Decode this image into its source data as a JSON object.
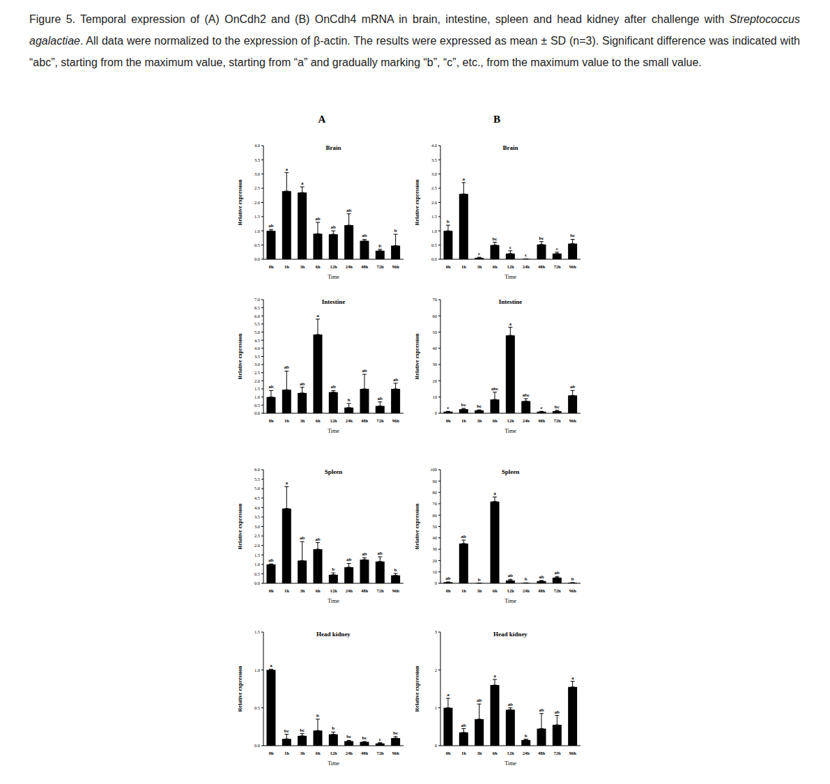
{
  "caption": {
    "label": "Figure 5",
    "parts": [
      {
        "text": ". Temporal expression of (A) OnCdh2 and (B) OnCdh4 mRNA in brain, intestine, spleen and head kidney after challenge with ",
        "italic": false
      },
      {
        "text": "Streptococcus agalactiae",
        "italic": true
      },
      {
        "text": ". All data were normalized to the expression of β-actin. The results were expressed as mean ± SD (n=3). Significant difference was indicated with “abc”, starting from the maximum value, starting from “a” and gradually marking “b”, “c”, etc., from the maximum value to the small value.",
        "italic": false
      }
    ]
  },
  "panel_labels": [
    "A",
    "B"
  ],
  "chart_data": [
    {
      "type": "bar",
      "panel": "A",
      "title": "Brain",
      "x_label": "Time",
      "y_label": "Relative expression",
      "color": "#000000",
      "categories": [
        "0h",
        "1h",
        "3h",
        "6h",
        "12h",
        "24h",
        "48h",
        "72h",
        "96h"
      ],
      "values": [
        1.0,
        2.4,
        2.35,
        0.9,
        0.88,
        1.2,
        0.65,
        0.3,
        0.48
      ],
      "errors": [
        0.05,
        0.65,
        0.2,
        0.4,
        0.12,
        0.4,
        0.05,
        0.05,
        0.4
      ],
      "letters": [
        "ab",
        "a",
        "a",
        "ab",
        "ab",
        "ab",
        "ab",
        "b",
        "b"
      ],
      "ylim": [
        0,
        4
      ],
      "yticks": [
        {
          "value": 0,
          "label": "0.0"
        },
        0.5,
        {
          "value": 1,
          "label": "1.0"
        },
        1.5,
        {
          "value": 2,
          "label": "2.0"
        },
        2.5,
        {
          "value": 3,
          "label": "3.0"
        },
        3.5,
        {
          "value": 4,
          "label": "4.0"
        }
      ]
    },
    {
      "type": "bar",
      "panel": "A",
      "title": "Intestine",
      "x_label": "Time",
      "y_label": "Relative expression",
      "color": "#000000",
      "categories": [
        "0h",
        "1h",
        "3h",
        "6h",
        "12h",
        "24h",
        "48h",
        "72h",
        "96h"
      ],
      "values": [
        1.0,
        1.45,
        1.25,
        4.85,
        1.3,
        0.35,
        1.5,
        0.45,
        1.5
      ],
      "errors": [
        0.4,
        1.15,
        0.35,
        0.95,
        0.1,
        0.25,
        0.9,
        0.25,
        0.35
      ],
      "letters": [
        "ab",
        "ab",
        "ab",
        "a",
        "ab",
        "b",
        "ab",
        "ab",
        "ab"
      ],
      "ylim": [
        0,
        7
      ],
      "yticks": [
        {
          "value": 0,
          "label": "0.0"
        },
        0.5,
        {
          "value": 1,
          "label": "1.0"
        },
        1.5,
        {
          "value": 2,
          "label": "2.0"
        },
        2.5,
        {
          "value": 3,
          "label": "3.0"
        },
        3.5,
        {
          "value": 4,
          "label": "4.0"
        },
        4.5,
        {
          "value": 5,
          "label": "5.0"
        },
        5.5,
        {
          "value": 6,
          "label": "6.0"
        },
        6.5,
        {
          "value": 7,
          "label": "7.0"
        }
      ]
    },
    {
      "type": "bar",
      "panel": "A",
      "title": "Spleen",
      "x_label": "Time",
      "y_label": "Relative expression",
      "color": "#000000",
      "categories": [
        "0h",
        "1h",
        "3h",
        "6h",
        "12h",
        "24h",
        "48h",
        "72h",
        "96h"
      ],
      "values": [
        1.0,
        3.95,
        1.2,
        1.8,
        0.45,
        0.85,
        1.25,
        1.15,
        0.42
      ],
      "errors": [
        0.02,
        1.15,
        1.0,
        0.35,
        0.1,
        0.2,
        0.1,
        0.25,
        0.1
      ],
      "letters": [
        "ab",
        "a",
        "ab",
        "ab",
        "b",
        "ab",
        "ab",
        "ab",
        "b"
      ],
      "ylim": [
        0,
        6
      ],
      "yticks": [
        {
          "value": 0,
          "label": "0.0"
        },
        0.5,
        {
          "value": 1,
          "label": "1.0"
        },
        1.5,
        {
          "value": 2,
          "label": "2.0"
        },
        2.5,
        {
          "value": 3,
          "label": "3.0"
        },
        3.5,
        {
          "value": 4,
          "label": "4.0"
        },
        4.5,
        {
          "value": 5,
          "label": "5.0"
        },
        5.5,
        {
          "value": 6,
          "label": "6.0"
        }
      ]
    },
    {
      "type": "bar",
      "panel": "A",
      "title": "Head kidney",
      "x_label": "Time",
      "y_label": "Relative expression",
      "color": "#000000",
      "categories": [
        "0h",
        "1h",
        "3h",
        "6h",
        "12h",
        "24h",
        "48h",
        "72h",
        "96h"
      ],
      "values": [
        1.0,
        0.09,
        0.13,
        0.2,
        0.15,
        0.06,
        0.05,
        0.03,
        0.1
      ],
      "errors": [
        0.01,
        0.06,
        0.03,
        0.15,
        0.03,
        0.01,
        0.005,
        0.01,
        0.02
      ],
      "letters": [
        "a",
        "bc",
        "bc",
        "b",
        "b",
        "bc",
        "bc",
        "c",
        "bc"
      ],
      "ylim": [
        0,
        1.5
      ],
      "yticks": [
        {
          "value": 0,
          "label": "0.0"
        },
        0.5,
        {
          "value": 1,
          "label": "1.0"
        },
        1.5
      ]
    },
    {
      "type": "bar",
      "panel": "B",
      "title": "Brain",
      "x_label": "Time",
      "y_label": "Relative expression",
      "color": "#000000",
      "categories": [
        "0h",
        "1h",
        "3h",
        "6h",
        "12h",
        "24h",
        "48h",
        "72h",
        "96h"
      ],
      "values": [
        1.0,
        2.3,
        0.05,
        0.5,
        0.2,
        0.01,
        0.52,
        0.2,
        0.55
      ],
      "errors": [
        0.2,
        0.4,
        0.02,
        0.1,
        0.1,
        0.005,
        0.1,
        0.05,
        0.15
      ],
      "letters": [
        "b",
        "a",
        "c",
        "bc",
        "c",
        "c",
        "bc",
        "c",
        "bc"
      ],
      "ylim": [
        0,
        4
      ],
      "yticks": [
        {
          "value": 0,
          "label": "0.0"
        },
        0.5,
        {
          "value": 1,
          "label": "1.0"
        },
        1.5,
        {
          "value": 2,
          "label": "2.0"
        },
        2.5,
        {
          "value": 3,
          "label": "3.0"
        },
        3.5,
        {
          "value": 4,
          "label": "4.0"
        }
      ]
    },
    {
      "type": "bar",
      "panel": "B",
      "title": "Intestine",
      "x_label": "Time",
      "y_label": "Relative expression",
      "color": "#000000",
      "categories": [
        "0h",
        "1h",
        "3h",
        "6h",
        "12h",
        "24h",
        "48h",
        "72h",
        "96h"
      ],
      "values": [
        1.0,
        2.5,
        1.8,
        8.5,
        48,
        7.5,
        1.0,
        1.3,
        11
      ],
      "errors": [
        0.2,
        0.5,
        0.3,
        4.5,
        5,
        1.5,
        0.2,
        0.5,
        3
      ],
      "letters": [
        "c",
        "bc",
        "bc",
        "abc",
        "a",
        "abc",
        "c",
        "bc",
        "ab"
      ],
      "ylim": [
        0,
        70
      ],
      "yticks": [
        0,
        10,
        20,
        30,
        40,
        50,
        60,
        70
      ]
    },
    {
      "type": "bar",
      "panel": "B",
      "title": "Spleen",
      "x_label": "Time",
      "y_label": "Relative expression",
      "color": "#000000",
      "categories": [
        "0h",
        "1h",
        "3h",
        "6h",
        "12h",
        "24h",
        "48h",
        "72h",
        "96h"
      ],
      "values": [
        1.0,
        35,
        0.2,
        72,
        2.5,
        0.3,
        2.0,
        5,
        0.5
      ],
      "errors": [
        0.2,
        3,
        0.1,
        4,
        1,
        0.1,
        0.5,
        1,
        0.1
      ],
      "letters": [
        "ab",
        "ab",
        "b",
        "a",
        "ab",
        "b",
        "ab",
        "ab",
        "b"
      ],
      "ylim": [
        0,
        100
      ],
      "yticks": [
        0,
        10,
        20,
        30,
        40,
        50,
        60,
        70,
        80,
        90,
        100
      ]
    },
    {
      "type": "bar",
      "panel": "B",
      "title": "Head kidney",
      "x_label": "Time",
      "y_label": "Relative expression",
      "color": "#000000",
      "categories": [
        "0h",
        "1h",
        "3h",
        "6h",
        "12h",
        "24h",
        "48h",
        "72h",
        "96h"
      ],
      "values": [
        1.0,
        0.35,
        0.7,
        1.6,
        0.95,
        0.15,
        0.45,
        0.55,
        1.55
      ],
      "errors": [
        0.25,
        0.1,
        0.4,
        0.15,
        0.05,
        0.02,
        0.4,
        0.25,
        0.15
      ],
      "letters": [
        "a",
        "ab",
        "ab",
        "a",
        "ab",
        "b",
        "ab",
        "ab",
        "a"
      ],
      "ylim": [
        0,
        3
      ],
      "yticks": [
        0,
        1,
        2,
        3
      ]
    }
  ]
}
